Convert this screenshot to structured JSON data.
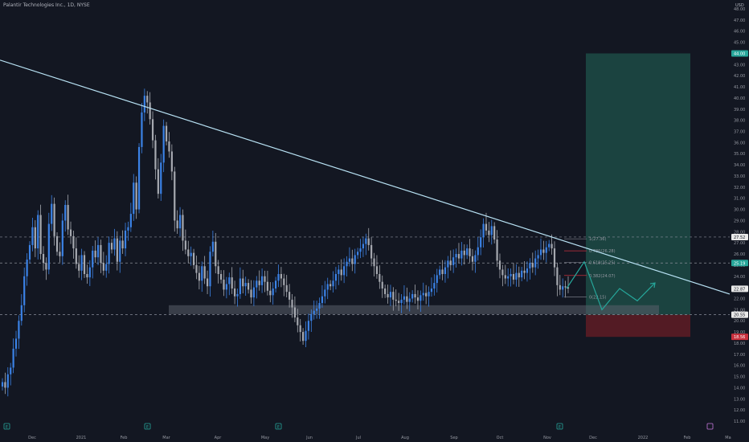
{
  "header": {
    "title": "Palantir Technologies Inc., 1D, NYSE",
    "currency": "USD",
    "top_price": "48.00"
  },
  "colors": {
    "background": "#131722",
    "candle_up": "#3b82e6",
    "candle_down": "#a6a9b0",
    "trendline": "#b9e3f5",
    "target_zone": "#1d4b45",
    "stop_zone": "#5b1c25",
    "support_zone": "#5a5f6a",
    "projection": "#26a69a",
    "badge_teal": "#26a69a",
    "badge_red": "#c8303d"
  },
  "chart_data": {
    "type": "candlestick",
    "title": "Palantir Technologies Inc., 1D, NYSE",
    "ylabel": "USD",
    "ylim": [
      11,
      48
    ],
    "y_ticks": [
      "11.00",
      "12.00",
      "13.00",
      "14.00",
      "15.00",
      "16.00",
      "17.00",
      "18.00",
      "19.00",
      "20.00",
      "21.00",
      "22.00",
      "23.00",
      "24.00",
      "25.00",
      "26.00",
      "27.00",
      "28.00",
      "29.00",
      "30.00",
      "31.00",
      "32.00",
      "33.00",
      "34.00",
      "35.00",
      "36.00",
      "37.00",
      "38.00",
      "39.00",
      "40.00",
      "41.00",
      "42.00",
      "43.00",
      "44.00",
      "45.00",
      "46.00",
      "47.00",
      "48.00"
    ],
    "x_ticks": [
      "Dec",
      "2021",
      "Feb",
      "Mar",
      "Apr",
      "May",
      "Jun",
      "Jul",
      "Aug",
      "Sep",
      "Oct",
      "Nov",
      "Dec",
      "2022",
      "Feb",
      "Ma"
    ],
    "price_labels": [
      {
        "value": 44.0,
        "text": "44.00",
        "style": "teal"
      },
      {
        "value": 27.52,
        "text": "27.52",
        "style": "white"
      },
      {
        "value": 25.19,
        "text": "25.19",
        "style": "teal"
      },
      {
        "value": 22.87,
        "text": "22.87",
        "style": "white"
      },
      {
        "value": 20.55,
        "text": "20.55",
        "style": "white"
      },
      {
        "value": 18.56,
        "text": "18.56",
        "style": "red"
      }
    ],
    "fib_levels": [
      {
        "value": 27.36,
        "text": "1(27.36)"
      },
      {
        "value": 26.28,
        "text": "0.786(26.28)"
      },
      {
        "value": 25.25,
        "text": "0.618(25.25)"
      },
      {
        "value": 24.07,
        "text": "0.382(24.07)"
      },
      {
        "value": 22.15,
        "text": "0(22.15)"
      }
    ],
    "dashed_lines": [
      27.52,
      25.19,
      20.55
    ],
    "target_zone": {
      "top": 44.0,
      "bottom": 20.55
    },
    "stop_zone": {
      "top": 20.55,
      "bottom": 18.56
    },
    "support_zone": {
      "top": 21.4,
      "bottom": 20.6
    },
    "trendline": {
      "start": 43.4,
      "end": 22.4
    },
    "projection_path": [
      22.9,
      25.3,
      21.0,
      22.9,
      21.8,
      23.4
    ],
    "closes": [
      14.5,
      14.0,
      15.2,
      15.8,
      17.5,
      18.4,
      20.0,
      21.4,
      24.0,
      25.5,
      26.8,
      28.4,
      26.5,
      29.5,
      26.0,
      25.2,
      24.6,
      28.7,
      30.5,
      27.6,
      26.2,
      25.8,
      29.0,
      30.4,
      28.2,
      27.6,
      26.5,
      25.1,
      24.5,
      25.9,
      24.2,
      23.9,
      24.8,
      26.3,
      25.7,
      26.8,
      25.2,
      24.5,
      25.1,
      27.0,
      26.4,
      27.4,
      25.3,
      27.2,
      26.5,
      28.1,
      28.4,
      29.6,
      32.4,
      30.0,
      35.6,
      38.7,
      40.2,
      39.6,
      38.1,
      36.2,
      33.6,
      31.4,
      34.2,
      37.5,
      36.1,
      35.2,
      33.4,
      29.0,
      28.3,
      29.5,
      27.2,
      26.4,
      25.8,
      26.1,
      25.0,
      24.3,
      23.6,
      24.9,
      23.8,
      23.1,
      26.2,
      27.1,
      24.9,
      24.2,
      23.7,
      22.8,
      23.3,
      23.9,
      22.9,
      22.2,
      22.4,
      23.8,
      23.1,
      23.4,
      22.8,
      22.1,
      23.0,
      23.6,
      23.2,
      24.0,
      23.5,
      22.7,
      22.3,
      22.9,
      23.6,
      24.2,
      23.8,
      23.2,
      22.6,
      21.9,
      21.2,
      20.3,
      19.6,
      19.0,
      18.2,
      19.1,
      20.0,
      20.6,
      20.9,
      21.1,
      21.6,
      22.2,
      22.8,
      23.3,
      23.1,
      23.6,
      24.2,
      24.6,
      24.1,
      24.9,
      25.3,
      25.6,
      25.1,
      25.9,
      26.2,
      26.5,
      26.9,
      27.4,
      26.8,
      25.6,
      24.9,
      24.2,
      23.5,
      22.9,
      22.4,
      22.1,
      22.6,
      21.9,
      21.8,
      21.6,
      21.9,
      22.2,
      21.7,
      22.0,
      22.4,
      22.1,
      21.8,
      22.3,
      22.5,
      22.2,
      22.6,
      22.9,
      23.4,
      24.1,
      24.6,
      24.2,
      24.8,
      25.4,
      25.0,
      25.7,
      26.0,
      25.6,
      26.3,
      25.9,
      26.5,
      25.8,
      25.3,
      25.9,
      26.6,
      27.5,
      28.7,
      28.1,
      27.7,
      28.5,
      27.3,
      25.4,
      24.6,
      24.1,
      23.8,
      24.0,
      24.2,
      23.7,
      24.3,
      23.9,
      24.5,
      24.3,
      24.7,
      25.2,
      24.8,
      25.6,
      25.9,
      26.4,
      26.1,
      26.6,
      26.9,
      26.5,
      24.8,
      23.2,
      22.8,
      23.1,
      23.0,
      22.9
    ]
  }
}
